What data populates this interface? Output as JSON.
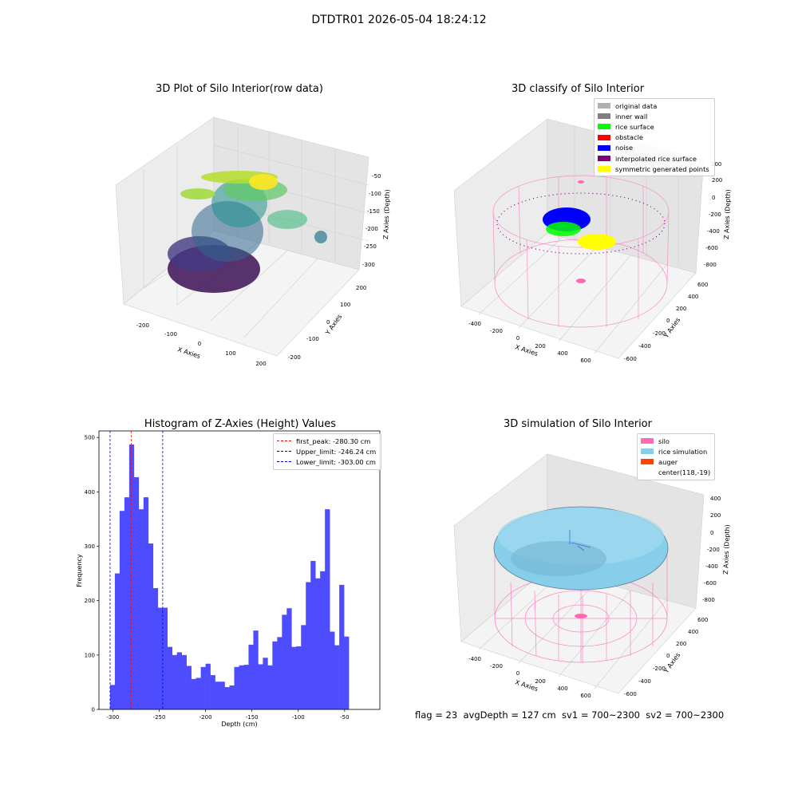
{
  "suptitle": "DTDTR01 2026-05-04 18:24:12",
  "panel1": {
    "title": "3D Plot of Silo Interior(row data)",
    "xlabel": "X Axies",
    "ylabel": "Y Axies",
    "zlabel": "Z Axies (Depth)",
    "xticks": [
      "-200",
      "-100",
      "0",
      "100",
      "200"
    ],
    "yticks": [
      "200",
      "100",
      "0",
      "-100",
      "-200"
    ],
    "zticks": [
      "-50",
      "-100",
      "-150",
      "-200",
      "-250",
      "-300"
    ]
  },
  "panel2": {
    "title": "3D classify of Silo Interior",
    "xlabel": "X Axies",
    "ylabel": "Y Axies",
    "zlabel": "Z Axies (Depth)",
    "xticks": [
      "-400",
      "-200",
      "0",
      "200",
      "400",
      "600"
    ],
    "yticks": [
      "600",
      "400",
      "200",
      "0",
      "-200",
      "-400",
      "-600"
    ],
    "zticks": [
      "200",
      "0",
      "-200",
      "-400",
      "-600",
      "-800"
    ],
    "legend": [
      {
        "label": "original data",
        "color": "#b0b0b0"
      },
      {
        "label": "inner wall",
        "color": "#808080"
      },
      {
        "label": "rice surface",
        "color": "#00ff00"
      },
      {
        "label": "obstacle",
        "color": "#ff0000"
      },
      {
        "label": "noise",
        "color": "#0000ff"
      },
      {
        "label": "interpolated rice surface",
        "color": "#800080"
      },
      {
        "label": "symmetric generated points",
        "color": "#ffff00"
      }
    ],
    "partial_tick": "200"
  },
  "panel3": {
    "title": "Histogram of Z-Axies (Height) Values",
    "legend": [
      {
        "label": "first_peak: -280.30 cm",
        "color": "#ff0000"
      },
      {
        "label": "Upper_limit: -246.24 cm",
        "color": "#0000ff"
      },
      {
        "label": "Lower_limit: -303.00 cm",
        "color": "#0000ff"
      }
    ]
  },
  "panel4": {
    "title": "3D simulation of Silo Interior",
    "xlabel": "X Axies",
    "ylabel": "Y Axies",
    "zlabel": "Z Axies (Depth)",
    "xticks": [
      "-400",
      "-200",
      "0",
      "200",
      "400",
      "600"
    ],
    "yticks": [
      "600",
      "400",
      "200",
      "0",
      "-200",
      "-400",
      "-600"
    ],
    "zticks": [
      "400",
      "200",
      "0",
      "-200",
      "-400",
      "-600",
      "-800"
    ],
    "legend": [
      {
        "label": "silo",
        "color": "#ff69b4"
      },
      {
        "label": "rice simulation",
        "color": "#87ceeb"
      },
      {
        "label": "auger",
        "color": "#ff4500"
      },
      {
        "label": "center(118,-19)",
        "color": "none"
      }
    ]
  },
  "info": "flag = 23  avgDepth = 127 cm  sv1 = 700~2300  sv2 = 700~2300",
  "chart_data": {
    "type": "bar",
    "title": "Histogram of Z-Axies (Height) Values",
    "xlabel": "Depth (cm)",
    "ylabel": "Frequency",
    "xlim": [
      -315,
      -12
    ],
    "ylim": [
      0,
      512
    ],
    "xticks": [
      -300,
      -250,
      -200,
      -150,
      -100,
      -50
    ],
    "yticks": [
      0,
      100,
      200,
      300,
      400,
      500
    ],
    "bin_start": -303,
    "bin_width": 5.15,
    "values": [
      45,
      250,
      365,
      390,
      487,
      427,
      368,
      390,
      305,
      223,
      187,
      187,
      115,
      100,
      105,
      100,
      80,
      56,
      58,
      78,
      84,
      63,
      51,
      51,
      41,
      44,
      78,
      81,
      82,
      119,
      145,
      83,
      95,
      81,
      125,
      133,
      174,
      186,
      115,
      116,
      155,
      234,
      273,
      241,
      254,
      368,
      143,
      118,
      229,
      134
    ],
    "series": [
      {
        "name": "",
        "values": [
          45,
          250,
          365,
          390,
          487,
          427,
          368,
          390,
          305,
          223,
          187,
          187,
          115,
          100,
          105,
          100,
          80,
          56,
          58,
          78,
          84,
          63,
          51,
          51,
          41,
          44,
          78,
          81,
          82,
          119,
          145,
          83,
          95,
          81,
          125,
          133,
          174,
          186,
          115,
          116,
          155,
          234,
          273,
          241,
          254,
          368,
          143,
          118,
          229,
          134
        ]
      }
    ],
    "vlines": [
      {
        "label": "first_peak: -280.30 cm",
        "x": -280.3,
        "color": "#ff0000"
      },
      {
        "label": "Upper_limit: -246.24 cm",
        "x": -246.24,
        "color": "#0000ff"
      },
      {
        "label": "Lower_limit: -303.00 cm",
        "x": -303.0,
        "color": "#0000ff"
      }
    ],
    "bar_color": "#4d4dff",
    "legend_position": "top-right",
    "grid": false
  }
}
